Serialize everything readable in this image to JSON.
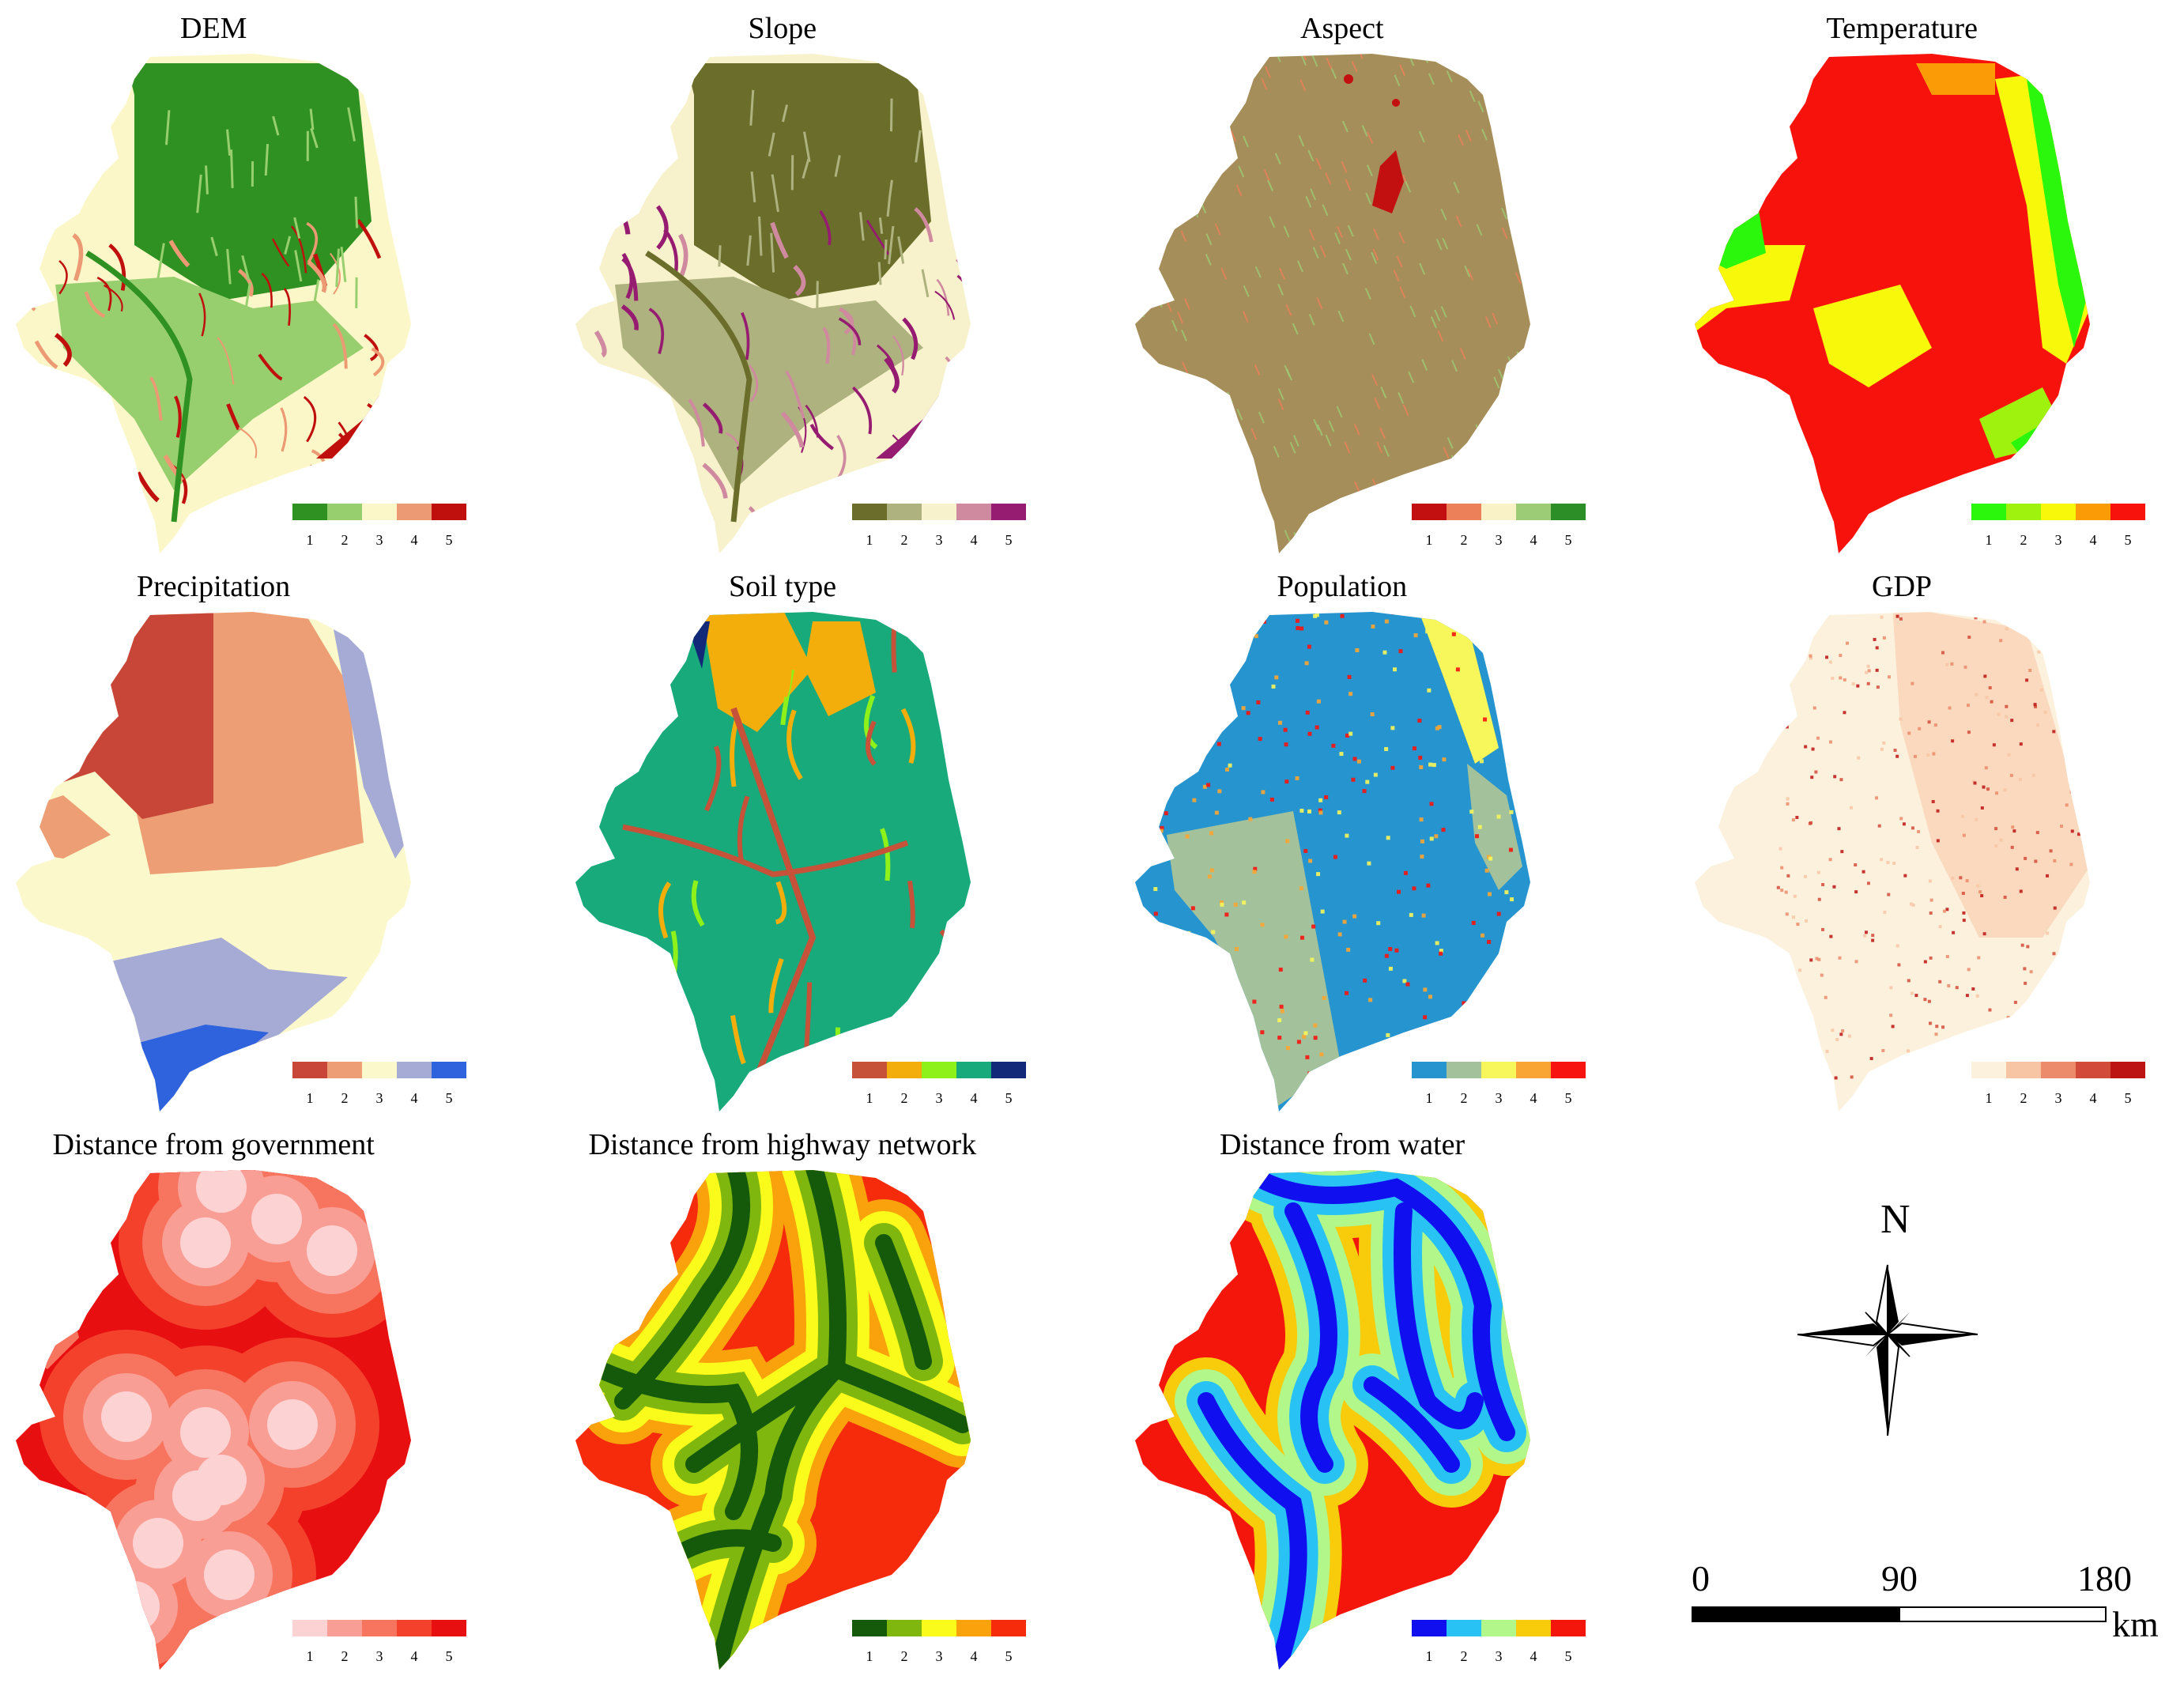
{
  "panels": [
    {
      "id": "dem",
      "title": "DEM",
      "style": "relief",
      "colors": [
        "#2f9121",
        "#98cf6e",
        "#fbf7c8",
        "#ec9a74",
        "#c0100d"
      ],
      "labels": [
        "1",
        "2",
        "3",
        "4",
        "5"
      ]
    },
    {
      "id": "slope",
      "title": "Slope",
      "style": "relief",
      "colors": [
        "#6b6e2a",
        "#aeb27e",
        "#f7f1cc",
        "#cf8aa0",
        "#961c71"
      ],
      "labels": [
        "1",
        "2",
        "3",
        "4",
        "5"
      ]
    },
    {
      "id": "aspect",
      "title": "Aspect",
      "style": "hatch",
      "colors": [
        "#c20f0f",
        "#ec8059",
        "#f8f2c6",
        "#9dcc76",
        "#2c8e26"
      ],
      "labels": [
        "1",
        "2",
        "3",
        "4",
        "5"
      ]
    },
    {
      "id": "temperature",
      "title": "Temperature",
      "style": "zones",
      "colors": [
        "#2bf70d",
        "#9ff20d",
        "#f8f80a",
        "#fb9c07",
        "#f7120b"
      ],
      "labels": [
        "1",
        "2",
        "3",
        "4",
        "5"
      ]
    },
    {
      "id": "precipitation",
      "title": "Precipitation",
      "style": "bands",
      "colors": [
        "#c74637",
        "#ee9e75",
        "#fbf9cc",
        "#a6abd6",
        "#2f63dd"
      ],
      "labels": [
        "1",
        "2",
        "3",
        "4",
        "5"
      ]
    },
    {
      "id": "soil",
      "title": "Soil type",
      "style": "rivers",
      "colors": [
        "#c55239",
        "#f4ae0c",
        "#8ef21a",
        "#18aa7a",
        "#12297a"
      ],
      "labels": [
        "1",
        "2",
        "3",
        "4",
        "5"
      ]
    },
    {
      "id": "population",
      "title": "Population",
      "style": "speckle",
      "colors": [
        "#2694ce",
        "#a3c29c",
        "#f7f65a",
        "#f9a533",
        "#f7130f"
      ],
      "labels": [
        "1",
        "2",
        "3",
        "4",
        "5"
      ]
    },
    {
      "id": "gdp",
      "title": "GDP",
      "style": "speckle-light",
      "colors": [
        "#fcf1dd",
        "#f7c5a4",
        "#eb8b6b",
        "#d24b3a",
        "#bc1313"
      ],
      "labels": [
        "1",
        "2",
        "3",
        "4",
        "5"
      ]
    },
    {
      "id": "dist-gov",
      "title": "Distance from government",
      "style": "buffers",
      "colors": [
        "#fdd2d2",
        "#f99e95",
        "#f7745e",
        "#f3412c",
        "#e80f10"
      ],
      "labels": [
        "1",
        "2",
        "3",
        "4",
        "5"
      ]
    },
    {
      "id": "dist-highway",
      "title": "Distance from highway network",
      "style": "corridors",
      "colors": [
        "#145a0a",
        "#7fb70e",
        "#fafa1b",
        "#f9a20c",
        "#f52b0c"
      ],
      "labels": [
        "1",
        "2",
        "3",
        "4",
        "5"
      ]
    },
    {
      "id": "dist-water",
      "title": "Distance from water",
      "style": "corridors",
      "colors": [
        "#0f0ff0",
        "#28c2f5",
        "#b1f789",
        "#f8cb0b",
        "#f4160b"
      ],
      "labels": [
        "1",
        "2",
        "3",
        "4",
        "5"
      ]
    }
  ],
  "north_arrow": {
    "label": "N"
  },
  "scale_bar": {
    "ticks": [
      "0",
      "90",
      "180"
    ],
    "unit": "km"
  }
}
